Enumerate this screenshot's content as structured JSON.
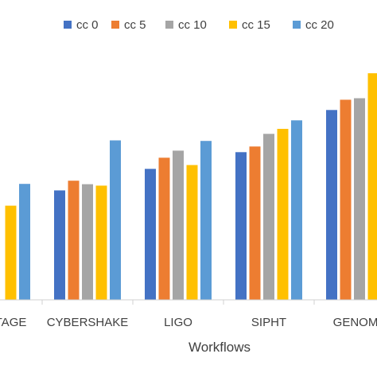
{
  "chart_data": {
    "type": "bar",
    "xlabel": "Workflows",
    "ylabel": "",
    "title": "",
    "ylim": [
      0,
      100
    ],
    "categories": [
      "MONTAGE",
      "CYBERSHAKE",
      "LIGO",
      "SIPHT",
      "GENOME"
    ],
    "series": [
      {
        "name": "cc 0",
        "color": "#4472C4",
        "values": [
          null,
          37.2,
          44.5,
          50.2,
          64.5
        ]
      },
      {
        "name": "cc 5",
        "color": "#ED7D31",
        "values": [
          null,
          40.5,
          48.3,
          52.1,
          68.0
        ]
      },
      {
        "name": "cc 10",
        "color": "#A5A5A5",
        "values": [
          null,
          39.3,
          50.7,
          56.4,
          68.5
        ]
      },
      {
        "name": "cc 15",
        "color": "#FFC000",
        "values": [
          32.0,
          38.8,
          45.8,
          58.1,
          77.0
        ]
      },
      {
        "name": "cc 20",
        "color": "#5B9BD5",
        "values": [
          39.4,
          54.2,
          54.0,
          61.0,
          null
        ]
      }
    ],
    "legend_position": "top",
    "grid": false
  }
}
